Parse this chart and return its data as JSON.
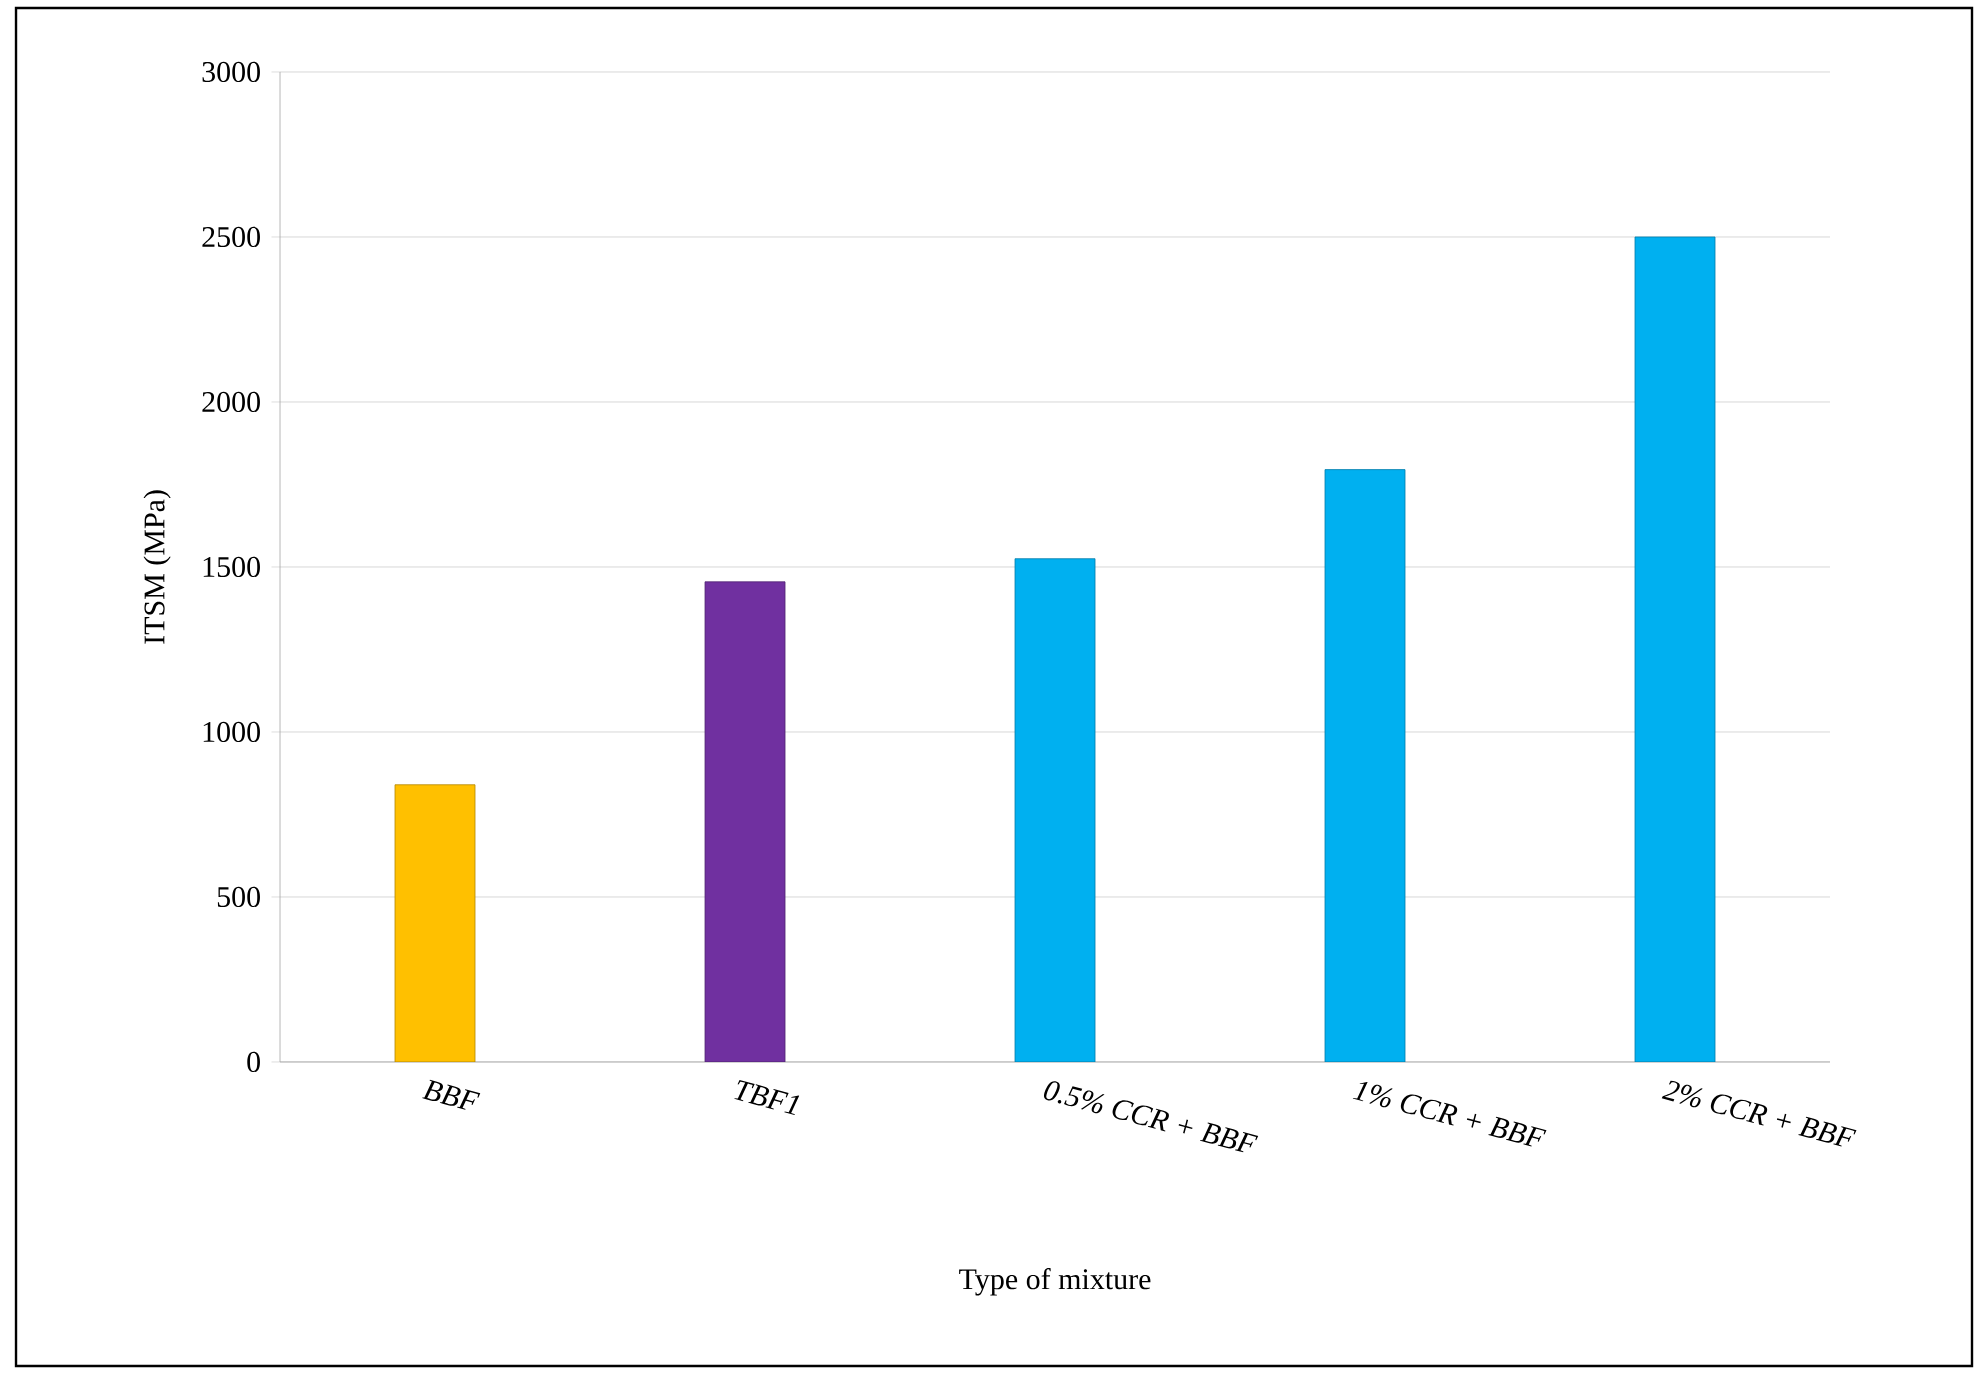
{
  "chart_data": {
    "type": "bar",
    "xlabel": "Type of mixture",
    "ylabel": "ITSM (MPa)",
    "categories": [
      "BBF",
      "TBF1",
      "0.5% CCR + BBF",
      "1% CCR + BBF",
      "2% CCR + BBF"
    ],
    "values": [
      840,
      1455,
      1525,
      1795,
      2500
    ],
    "colors": [
      "#ffc000",
      "#7030a0",
      "#00b0f0",
      "#00b0f0",
      "#00b0f0"
    ],
    "ylim": [
      0,
      3000
    ],
    "yticks": [
      0,
      500,
      1000,
      1500,
      2000,
      2500,
      3000
    ],
    "grid": "y"
  }
}
